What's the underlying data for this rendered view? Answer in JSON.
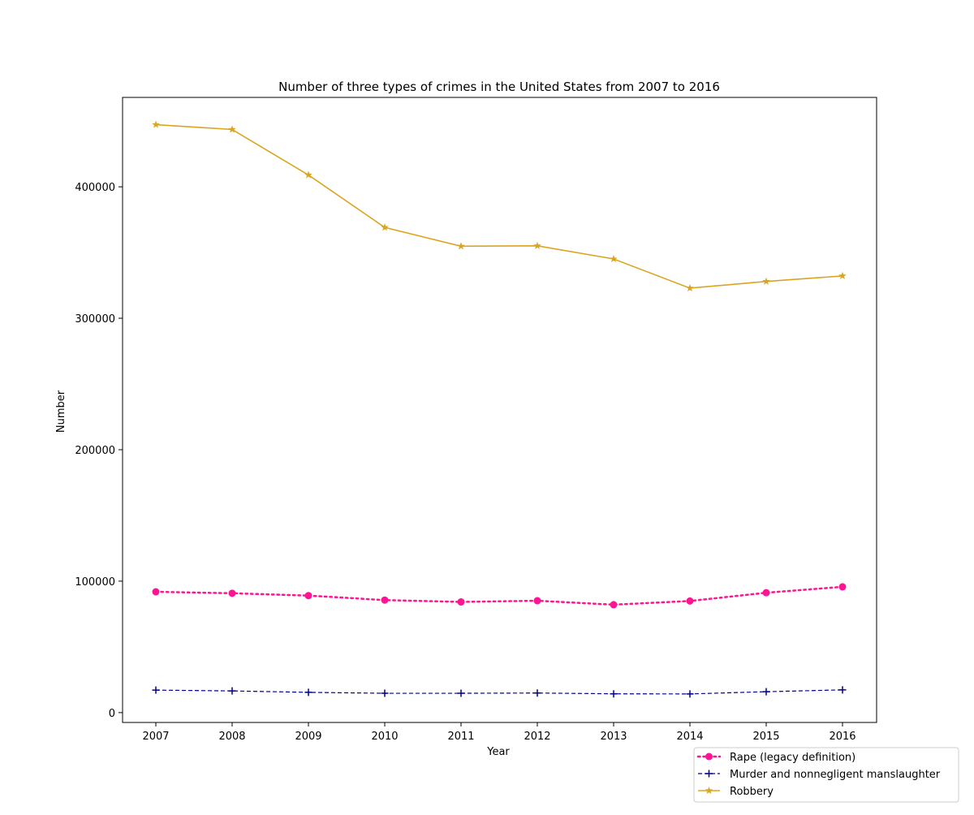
{
  "chart_data": {
    "type": "line",
    "title": "Number of three types of crimes in the United States from 2007 to 2016",
    "xlabel": "Year",
    "ylabel": "Number",
    "x": [
      "2007",
      "2008",
      "2009",
      "2010",
      "2011",
      "2012",
      "2013",
      "2014",
      "2015",
      "2016"
    ],
    "x_ticks": [
      "2007",
      "2008",
      "2009",
      "2010",
      "2011",
      "2012",
      "2013",
      "2014",
      "2015",
      "2016"
    ],
    "y_ticks": [
      "0",
      "100000",
      "200000",
      "300000",
      "400000"
    ],
    "ylim": [
      -7500,
      468000
    ],
    "grid": false,
    "legend_position": "bottom-right, outside plot",
    "series": [
      {
        "name": "Rape (legacy definition)",
        "color": "#ff1493",
        "line_style": "dotted",
        "marker": "circle",
        "values": [
          91900,
          90800,
          89000,
          85600,
          84200,
          85100,
          82100,
          84900,
          91200,
          95700
        ]
      },
      {
        "name": "Murder and nonnegligent manslaughter",
        "color": "#00008b",
        "line_style": "dashed",
        "marker": "plus",
        "values": [
          17100,
          16500,
          15400,
          14700,
          14700,
          14900,
          14300,
          14200,
          15900,
          17300
        ]
      },
      {
        "name": "Robbery",
        "color": "#daa520",
        "line_style": "solid",
        "marker": "star",
        "values": [
          447300,
          443600,
          409000,
          369100,
          354800,
          355100,
          345100,
          322900,
          328000,
          332200
        ]
      }
    ]
  }
}
